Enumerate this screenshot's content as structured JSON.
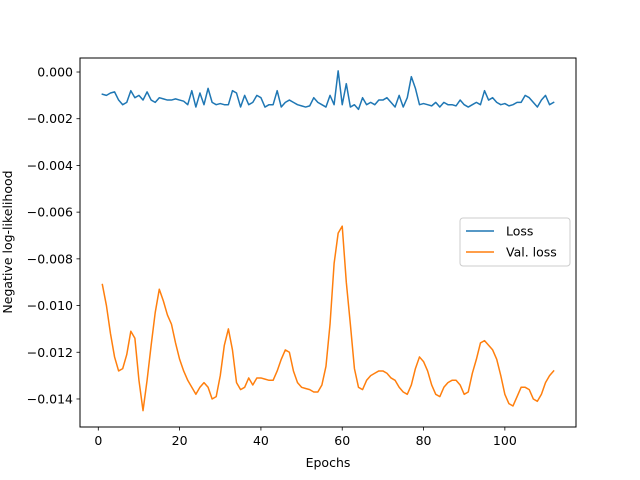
{
  "chart_data": {
    "type": "line",
    "title": "",
    "xlabel": "Epochs",
    "ylabel": "Negative log-likelihood",
    "xlim": [
      -4.5,
      117.5
    ],
    "ylim": [
      -0.0152,
      0.0006
    ],
    "xticks": [
      {
        "value": 0,
        "label": "0"
      },
      {
        "value": 20,
        "label": "20"
      },
      {
        "value": 40,
        "label": "40"
      },
      {
        "value": 60,
        "label": "60"
      },
      {
        "value": 80,
        "label": "80"
      },
      {
        "value": 100,
        "label": "100"
      }
    ],
    "yticks": [
      {
        "value": 0.0,
        "label": "0.000"
      },
      {
        "value": -0.002,
        "label": "−0.002"
      },
      {
        "value": -0.004,
        "label": "−0.004"
      },
      {
        "value": -0.006,
        "label": "−0.006"
      },
      {
        "value": -0.008,
        "label": "−0.008"
      },
      {
        "value": -0.01,
        "label": "−0.010"
      },
      {
        "value": -0.012,
        "label": "−0.012"
      },
      {
        "value": -0.014,
        "label": "−0.014"
      }
    ],
    "grid": false,
    "legend_position": "center-right",
    "series": [
      {
        "name": "Loss",
        "color": "#1f77b4",
        "x": [
          1,
          2,
          3,
          4,
          5,
          6,
          7,
          8,
          9,
          10,
          11,
          12,
          13,
          14,
          15,
          16,
          17,
          18,
          19,
          20,
          21,
          22,
          23,
          24,
          25,
          26,
          27,
          28,
          29,
          30,
          31,
          32,
          33,
          34,
          35,
          36,
          37,
          38,
          39,
          40,
          41,
          42,
          43,
          44,
          45,
          46,
          47,
          48,
          49,
          50,
          51,
          52,
          53,
          54,
          55,
          56,
          57,
          58,
          59,
          60,
          61,
          62,
          63,
          64,
          65,
          66,
          67,
          68,
          69,
          70,
          71,
          72,
          73,
          74,
          75,
          76,
          77,
          78,
          79,
          80,
          81,
          82,
          83,
          84,
          85,
          86,
          87,
          88,
          89,
          90,
          91,
          92,
          93,
          94,
          95,
          96,
          97,
          98,
          99,
          100,
          101,
          102,
          103,
          104,
          105,
          106,
          107,
          108,
          109,
          110,
          111,
          112
        ],
        "values": [
          -0.00095,
          -0.001,
          -0.0009,
          -0.00085,
          -0.0012,
          -0.0014,
          -0.0013,
          -0.0008,
          -0.0011,
          -0.001,
          -0.0012,
          -0.00085,
          -0.0012,
          -0.0013,
          -0.0011,
          -0.00115,
          -0.0012,
          -0.0012,
          -0.00115,
          -0.0012,
          -0.00125,
          -0.0014,
          -0.0008,
          -0.0015,
          -0.0009,
          -0.0014,
          -0.0007,
          -0.0013,
          -0.0014,
          -0.00135,
          -0.0014,
          -0.0014,
          -0.0008,
          -0.0009,
          -0.0015,
          -0.001,
          -0.0014,
          -0.0013,
          -0.001,
          -0.0011,
          -0.0015,
          -0.0014,
          -0.0014,
          -0.0008,
          -0.0015,
          -0.0013,
          -0.0012,
          -0.0013,
          -0.0014,
          -0.00145,
          -0.0015,
          -0.00145,
          -0.0011,
          -0.0013,
          -0.0014,
          -0.0015,
          -0.001,
          -0.0014,
          5e-05,
          -0.0014,
          -0.0005,
          -0.0015,
          -0.0014,
          -0.0016,
          -0.0011,
          -0.0014,
          -0.0013,
          -0.0014,
          -0.0012,
          -0.0012,
          -0.0011,
          -0.0013,
          -0.0015,
          -0.001,
          -0.0015,
          -0.0011,
          -0.0002,
          -0.0007,
          -0.0014,
          -0.00135,
          -0.0014,
          -0.00145,
          -0.0013,
          -0.0015,
          -0.0013,
          -0.0014,
          -0.0014,
          -0.00145,
          -0.0012,
          -0.0014,
          -0.0015,
          -0.0014,
          -0.0013,
          -0.0014,
          -0.0008,
          -0.0012,
          -0.0011,
          -0.0013,
          -0.0014,
          -0.00135,
          -0.00145,
          -0.0014,
          -0.0013,
          -0.0013,
          -0.001,
          -0.0011,
          -0.0013,
          -0.0015,
          -0.0012,
          -0.001,
          -0.0014,
          -0.0013
        ]
      },
      {
        "name": "Val. loss",
        "color": "#ff7f0e",
        "x": [
          1,
          2,
          3,
          4,
          5,
          6,
          7,
          8,
          9,
          10,
          11,
          12,
          13,
          14,
          15,
          16,
          17,
          18,
          19,
          20,
          21,
          22,
          23,
          24,
          25,
          26,
          27,
          28,
          29,
          30,
          31,
          32,
          33,
          34,
          35,
          36,
          37,
          38,
          39,
          40,
          41,
          42,
          43,
          44,
          45,
          46,
          47,
          48,
          49,
          50,
          51,
          52,
          53,
          54,
          55,
          56,
          57,
          58,
          59,
          60,
          61,
          62,
          63,
          64,
          65,
          66,
          67,
          68,
          69,
          70,
          71,
          72,
          73,
          74,
          75,
          76,
          77,
          78,
          79,
          80,
          81,
          82,
          83,
          84,
          85,
          86,
          87,
          88,
          89,
          90,
          91,
          92,
          93,
          94,
          95,
          96,
          97,
          98,
          99,
          100,
          101,
          102,
          103,
          104,
          105,
          106,
          107,
          108,
          109,
          110,
          111,
          112
        ],
        "values": [
          -0.0091,
          -0.01,
          -0.0112,
          -0.0122,
          -0.0128,
          -0.0127,
          -0.0121,
          -0.0111,
          -0.0114,
          -0.0132,
          -0.0145,
          -0.0132,
          -0.0117,
          -0.0103,
          -0.0093,
          -0.0098,
          -0.0104,
          -0.0108,
          -0.0116,
          -0.0123,
          -0.0128,
          -0.0132,
          -0.0135,
          -0.0138,
          -0.0135,
          -0.0133,
          -0.0135,
          -0.014,
          -0.0139,
          -0.013,
          -0.0117,
          -0.011,
          -0.0119,
          -0.0133,
          -0.0136,
          -0.0135,
          -0.0131,
          -0.0134,
          -0.0131,
          -0.0131,
          -0.01315,
          -0.0132,
          -0.0132,
          -0.0128,
          -0.0123,
          -0.0119,
          -0.012,
          -0.0128,
          -0.0133,
          -0.0135,
          -0.01355,
          -0.0136,
          -0.0137,
          -0.0137,
          -0.0134,
          -0.0126,
          -0.0108,
          -0.0082,
          -0.0069,
          -0.0066,
          -0.009,
          -0.0108,
          -0.0127,
          -0.0135,
          -0.0136,
          -0.0132,
          -0.013,
          -0.0129,
          -0.0128,
          -0.0128,
          -0.0129,
          -0.0131,
          -0.0132,
          -0.0135,
          -0.0137,
          -0.0138,
          -0.0134,
          -0.0127,
          -0.0122,
          -0.0124,
          -0.0128,
          -0.0134,
          -0.0138,
          -0.0139,
          -0.0135,
          -0.0133,
          -0.0132,
          -0.0132,
          -0.0134,
          -0.0138,
          -0.0137,
          -0.0129,
          -0.0123,
          -0.0116,
          -0.0115,
          -0.0117,
          -0.0119,
          -0.0123,
          -0.013,
          -0.0138,
          -0.0142,
          -0.0143,
          -0.0139,
          -0.0135,
          -0.0135,
          -0.0136,
          -0.014,
          -0.0141,
          -0.0138,
          -0.0133,
          -0.013,
          -0.0128
        ]
      }
    ]
  }
}
